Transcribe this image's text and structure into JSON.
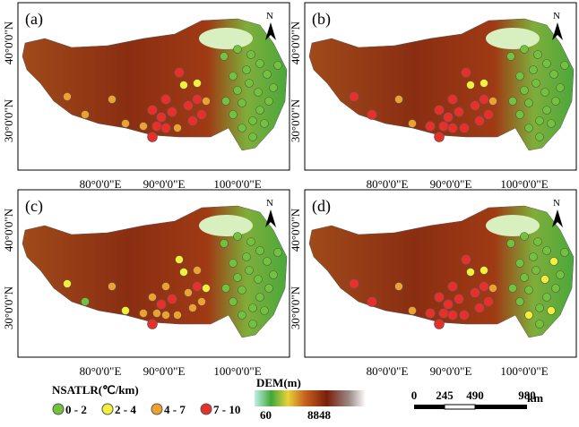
{
  "panels": [
    {
      "label": "(a)"
    },
    {
      "label": "(b)"
    },
    {
      "label": "(c)"
    },
    {
      "label": "(d)"
    }
  ],
  "x_ticks": [
    "80°0'0\"E",
    "90°0'0\"E",
    "100°0'0\"E"
  ],
  "y_ticks": [
    "40°0'0\"N",
    "30°0'0\"N"
  ],
  "north": "N",
  "legend": {
    "title": "NSATLR(℃/km)",
    "classes": [
      {
        "label": "0 - 2",
        "color": "#72c23c"
      },
      {
        "label": "2 - 4",
        "color": "#f3ef3a"
      },
      {
        "label": "4 - 7",
        "color": "#f0a02e"
      },
      {
        "label": "7 - 10",
        "color": "#e8302a"
      }
    ]
  },
  "dem": {
    "title": "DEM(m)",
    "min": "60",
    "max": "8848"
  },
  "scale_bar": {
    "labels": [
      "0",
      "245",
      "490",
      "980"
    ],
    "unit": "km"
  }
}
